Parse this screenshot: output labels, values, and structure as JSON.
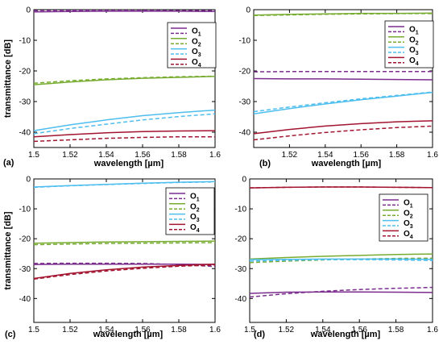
{
  "colors": {
    "O1": "#7b2d8e",
    "O2": "#77ac30",
    "O3": "#4dbeee",
    "O4": "#a2142f"
  },
  "chart_data": [
    {
      "type": "line",
      "panel_label": "(a)",
      "xlabel": "wavelength [µm]",
      "ylabel": "transmittance [dB]",
      "xlim": [
        1.5,
        1.6
      ],
      "ylim": [
        -45,
        0
      ],
      "x_ticks": [
        1.5,
        1.52,
        1.54,
        1.56,
        1.58,
        1.6
      ],
      "x_tick_labels": [
        "1.5",
        "1.52",
        "1.54",
        "1.56",
        "1.58",
        "1.6"
      ],
      "y_ticks": [
        0,
        -10,
        -20,
        -30,
        -40
      ],
      "y_tick_labels": [
        "0",
        "-10",
        "-20",
        "-30",
        "-40"
      ],
      "legend": [
        "O1",
        "O2",
        "O3",
        "O4"
      ],
      "legend_position": "top-right",
      "x": [
        1.5,
        1.52,
        1.54,
        1.56,
        1.58,
        1.6
      ],
      "series": [
        {
          "name": "O1",
          "style": "solid",
          "values": [
            -0.7,
            -0.6,
            -0.5,
            -0.5,
            -0.5,
            -0.6
          ]
        },
        {
          "name": "O1",
          "style": "dashed",
          "values": [
            -0.3,
            -0.2,
            -0.2,
            -0.2,
            -0.3,
            -0.3
          ]
        },
        {
          "name": "O2",
          "style": "solid",
          "values": [
            -24.5,
            -23.6,
            -22.9,
            -22.4,
            -22.1,
            -21.8
          ]
        },
        {
          "name": "O2",
          "style": "dashed",
          "values": [
            -24.0,
            -23.2,
            -22.6,
            -22.2,
            -21.9,
            -21.7
          ]
        },
        {
          "name": "O3",
          "style": "solid",
          "values": [
            -39.5,
            -37.6,
            -36.0,
            -34.6,
            -33.6,
            -32.8
          ]
        },
        {
          "name": "O3",
          "style": "dashed",
          "values": [
            -40.5,
            -38.8,
            -37.4,
            -36.0,
            -34.9,
            -34.0
          ]
        },
        {
          "name": "O4",
          "style": "solid",
          "values": [
            -41.5,
            -40.8,
            -40.2,
            -39.8,
            -39.6,
            -39.5
          ]
        },
        {
          "name": "O4",
          "style": "dashed",
          "values": [
            -43.0,
            -42.5,
            -42.0,
            -41.7,
            -41.5,
            -41.5
          ]
        }
      ]
    },
    {
      "type": "line",
      "panel_label": "(b)",
      "xlabel": "wavelength [µm]",
      "ylabel": "",
      "xlim": [
        1.5,
        1.6
      ],
      "ylim": [
        -45,
        0
      ],
      "x_ticks": [
        1.52,
        1.54,
        1.56,
        1.58,
        1.6
      ],
      "x_tick_labels": [
        "1.52",
        "1.54",
        "1.56",
        "1.58",
        "1.6"
      ],
      "y_ticks": [
        0,
        -10,
        -20,
        -30,
        -40
      ],
      "y_tick_labels": [
        "0",
        "-10",
        "-20",
        "-30",
        "-40"
      ],
      "legend": [
        "O1",
        "O2",
        "O3",
        "O4"
      ],
      "legend_position": "top-right",
      "x": [
        1.5,
        1.52,
        1.54,
        1.56,
        1.58,
        1.6
      ],
      "series": [
        {
          "name": "O1",
          "style": "solid",
          "values": [
            -22.5,
            -22.6,
            -22.6,
            -22.7,
            -22.8,
            -22.9
          ]
        },
        {
          "name": "O1",
          "style": "dashed",
          "values": [
            -20.3,
            -20.2,
            -20.2,
            -20.2,
            -20.2,
            -20.2
          ]
        },
        {
          "name": "O2",
          "style": "solid",
          "values": [
            -1.8,
            -1.5,
            -1.4,
            -1.2,
            -1.2,
            -1.1
          ]
        },
        {
          "name": "O2",
          "style": "dashed",
          "values": [
            -1.9,
            -1.7,
            -1.5,
            -1.4,
            -1.3,
            -1.3
          ]
        },
        {
          "name": "O3",
          "style": "solid",
          "values": [
            -34.0,
            -32.3,
            -30.8,
            -29.4,
            -28.2,
            -27.0
          ]
        },
        {
          "name": "O3",
          "style": "dashed",
          "values": [
            -33.3,
            -31.8,
            -30.4,
            -29.1,
            -28.0,
            -26.9
          ]
        },
        {
          "name": "O4",
          "style": "solid",
          "values": [
            -40.5,
            -39.1,
            -38.0,
            -37.2,
            -36.6,
            -36.3
          ]
        },
        {
          "name": "O4",
          "style": "dashed",
          "values": [
            -42.5,
            -41.2,
            -40.1,
            -39.2,
            -38.5,
            -38.0
          ]
        }
      ]
    },
    {
      "type": "line",
      "panel_label": "(c)",
      "xlabel": "wavelength [µm]",
      "ylabel": "transmittance [dB]",
      "xlim": [
        1.5,
        1.6
      ],
      "ylim": [
        -48,
        0
      ],
      "x_ticks": [
        1.5,
        1.52,
        1.54,
        1.56,
        1.58,
        1.6
      ],
      "x_tick_labels": [
        "1.5",
        "1.52",
        "1.54",
        "1.56",
        "1.58",
        "1.6"
      ],
      "y_ticks": [
        0,
        -10,
        -20,
        -30,
        -40
      ],
      "y_tick_labels": [
        "0",
        "-10",
        "-20",
        "-30",
        "-40"
      ],
      "legend": [
        "O1",
        "O2",
        "O3",
        "O4"
      ],
      "legend_position": "top-right",
      "x": [
        1.5,
        1.52,
        1.54,
        1.56,
        1.58,
        1.6
      ],
      "series": [
        {
          "name": "O1",
          "style": "solid",
          "values": [
            -28.6,
            -28.5,
            -28.5,
            -28.5,
            -28.5,
            -28.6
          ]
        },
        {
          "name": "O1",
          "style": "dashed",
          "values": [
            -28.3,
            -28.2,
            -28.2,
            -28.3,
            -28.6,
            -29.3
          ]
        },
        {
          "name": "O2",
          "style": "solid",
          "values": [
            -21.5,
            -21.3,
            -21.1,
            -21.0,
            -20.9,
            -20.8
          ]
        },
        {
          "name": "O2",
          "style": "dashed",
          "values": [
            -22.0,
            -21.8,
            -21.6,
            -21.5,
            -21.4,
            -21.3
          ]
        },
        {
          "name": "O3",
          "style": "solid",
          "values": [
            -2.7,
            -2.2,
            -1.8,
            -1.4,
            -1.1,
            -0.9
          ]
        },
        {
          "name": "O3",
          "style": "dashed",
          "values": [
            -2.8,
            -2.3,
            -1.9,
            -1.5,
            -1.2,
            -1.0
          ]
        },
        {
          "name": "O4",
          "style": "solid",
          "values": [
            -33.3,
            -31.6,
            -30.4,
            -29.5,
            -28.9,
            -28.5
          ]
        },
        {
          "name": "O4",
          "style": "dashed",
          "values": [
            -33.5,
            -32.0,
            -30.8,
            -29.9,
            -29.2,
            -28.8
          ]
        }
      ]
    },
    {
      "type": "line",
      "panel_label": "(d)",
      "xlabel": "wavelength [µm]",
      "ylabel": "",
      "xlim": [
        1.5,
        1.6
      ],
      "ylim": [
        -48,
        0
      ],
      "x_ticks": [
        1.5,
        1.52,
        1.54,
        1.56,
        1.58,
        1.6
      ],
      "x_tick_labels": [
        "1.5",
        "1.52",
        "1.54",
        "1.56",
        "1.58",
        "1.6"
      ],
      "y_ticks": [
        0,
        -10,
        -20,
        -30,
        -40
      ],
      "y_tick_labels": [
        "0",
        "-10",
        "-20",
        "-30",
        "-40"
      ],
      "legend": [
        "O1",
        "O2",
        "O3",
        "O4"
      ],
      "legend_position": "top-right",
      "x": [
        1.5,
        1.52,
        1.54,
        1.56,
        1.58,
        1.6
      ],
      "series": [
        {
          "name": "O1",
          "style": "solid",
          "values": [
            -38.3,
            -37.9,
            -37.8,
            -37.8,
            -37.9,
            -38.0
          ]
        },
        {
          "name": "O1",
          "style": "dashed",
          "values": [
            -39.5,
            -38.4,
            -37.6,
            -37.0,
            -36.6,
            -36.3
          ]
        },
        {
          "name": "O2",
          "style": "solid",
          "values": [
            -26.8,
            -26.3,
            -25.9,
            -25.6,
            -25.3,
            -25.1
          ]
        },
        {
          "name": "O2",
          "style": "dashed",
          "values": [
            -28.0,
            -27.5,
            -27.1,
            -26.8,
            -26.6,
            -26.5
          ]
        },
        {
          "name": "O3",
          "style": "solid",
          "values": [
            -27.0,
            -26.9,
            -26.8,
            -26.8,
            -26.8,
            -26.9
          ]
        },
        {
          "name": "O3",
          "style": "dashed",
          "values": [
            -27.5,
            -27.2,
            -27.0,
            -27.0,
            -27.1,
            -27.3
          ]
        },
        {
          "name": "O4",
          "style": "solid",
          "values": [
            -3.0,
            -2.8,
            -2.7,
            -2.7,
            -2.8,
            -2.9
          ]
        },
        {
          "name": "O4",
          "style": "dashed",
          "values": [
            -3.0,
            -2.8,
            -2.7,
            -2.7,
            -2.8,
            -2.9
          ]
        }
      ]
    }
  ]
}
